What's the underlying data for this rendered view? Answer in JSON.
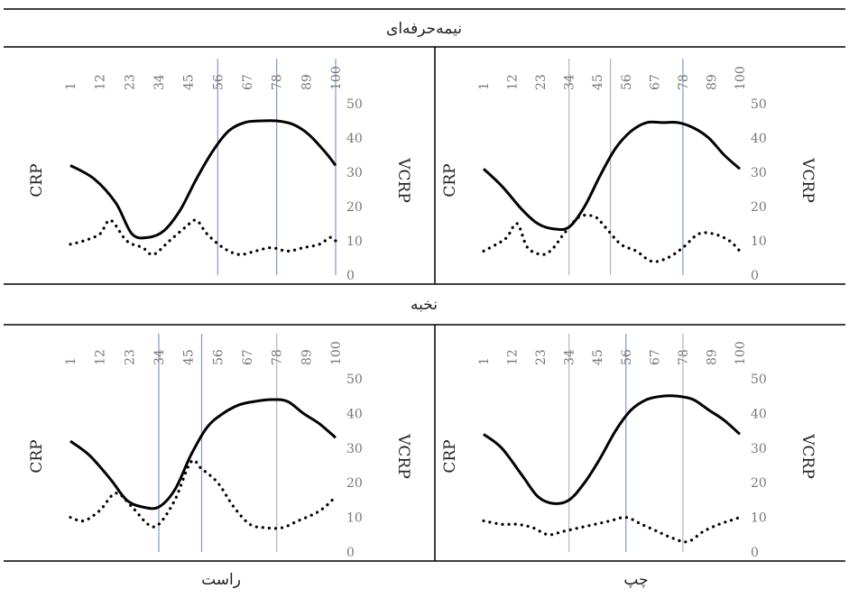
{
  "figure": {
    "section_titles": [
      "نیمه‌حرفه‌ای",
      "نخبه"
    ],
    "column_titles": [
      "راست",
      "چپ"
    ]
  },
  "colors": {
    "curve": "#000000",
    "vline_gray": "#b5b5b5",
    "vline_blue": "#7f9bc6",
    "frame": "#000000"
  },
  "chart_data": [
    {
      "type": "line",
      "group": "نیمه‌حرفه‌ای",
      "side": "راست",
      "x_ticks": [
        "1",
        "12",
        "23",
        "34",
        "45",
        "56",
        "67",
        "78",
        "89",
        "100"
      ],
      "xlim": [
        1,
        100
      ],
      "ylim": [
        0,
        50
      ],
      "y_ticks": [
        "0",
        "10",
        "20",
        "30",
        "40",
        "50"
      ],
      "y_left_label": "CRP",
      "y_right_label": "VCRP",
      "series": [
        {
          "style": "solid",
          "x": [
            1,
            10,
            18,
            24,
            30,
            36,
            42,
            48,
            54,
            60,
            66,
            72,
            78,
            84,
            90,
            96,
            100
          ],
          "y": [
            32,
            28,
            21,
            12,
            11,
            13,
            19,
            28,
            36,
            42,
            44.5,
            45,
            45,
            44,
            41,
            36,
            32
          ]
        },
        {
          "style": "dotted",
          "x": [
            1,
            6,
            12,
            16,
            22,
            28,
            32,
            38,
            44,
            48,
            52,
            58,
            64,
            70,
            76,
            82,
            88,
            94,
            98,
            100
          ],
          "y": [
            9,
            10,
            12,
            16,
            10,
            8,
            6,
            10,
            14,
            16,
            12,
            8,
            6,
            7,
            8,
            7,
            8,
            9,
            11,
            10
          ]
        }
      ],
      "vlines": [
        {
          "x": 56,
          "color": "blue"
        },
        {
          "x": 78,
          "color": "blue"
        },
        {
          "x": 100,
          "color": "blue"
        }
      ]
    },
    {
      "type": "line",
      "group": "نیمه‌حرفه‌ای",
      "side": "چپ",
      "x_ticks": [
        "1",
        "12",
        "23",
        "34",
        "45",
        "56",
        "67",
        "78",
        "89",
        "100"
      ],
      "xlim": [
        1,
        100
      ],
      "ylim": [
        0,
        50
      ],
      "y_ticks": [
        "0",
        "10",
        "20",
        "30",
        "40",
        "50"
      ],
      "y_left_label": "CRP",
      "y_right_label": "VCRP",
      "series": [
        {
          "style": "solid",
          "x": [
            1,
            8,
            16,
            22,
            28,
            34,
            40,
            46,
            52,
            58,
            64,
            70,
            76,
            82,
            88,
            94,
            100
          ],
          "y": [
            31,
            26,
            19,
            15,
            13.5,
            14,
            20,
            29,
            37,
            42,
            44.5,
            44.5,
            44.5,
            43,
            40,
            35,
            31
          ]
        },
        {
          "style": "dotted",
          "x": [
            1,
            6,
            10,
            14,
            18,
            24,
            28,
            32,
            38,
            44,
            48,
            54,
            60,
            66,
            72,
            78,
            84,
            90,
            96,
            100
          ],
          "y": [
            7,
            9,
            11,
            15,
            8,
            6,
            8,
            12,
            17,
            17,
            14,
            9,
            7,
            4,
            5,
            8,
            12,
            12,
            10,
            7
          ]
        }
      ],
      "vlines": [
        {
          "x": 34,
          "color": "gray"
        },
        {
          "x": 50,
          "color": "gray"
        },
        {
          "x": 78,
          "color": "blue"
        }
      ]
    },
    {
      "type": "line",
      "group": "نخبه",
      "side": "راست",
      "x_ticks": [
        "1",
        "12",
        "23",
        "34",
        "45",
        "56",
        "67",
        "78",
        "89",
        "100"
      ],
      "xlim": [
        1,
        100
      ],
      "ylim": [
        0,
        50
      ],
      "y_ticks": [
        "0",
        "10",
        "20",
        "30",
        "40",
        "50"
      ],
      "y_left_label": "CRP",
      "y_right_label": "VCRP",
      "series": [
        {
          "style": "solid",
          "x": [
            1,
            8,
            16,
            22,
            28,
            34,
            40,
            46,
            52,
            58,
            64,
            70,
            76,
            82,
            88,
            94,
            100
          ],
          "y": [
            32,
            28,
            21,
            15,
            13,
            13,
            18,
            28,
            36,
            40,
            42.5,
            43.5,
            44,
            43.5,
            40,
            37,
            33
          ]
        },
        {
          "style": "dotted",
          "x": [
            1,
            6,
            12,
            18,
            24,
            30,
            34,
            40,
            46,
            50,
            56,
            62,
            68,
            74,
            80,
            86,
            92,
            96,
            100
          ],
          "y": [
            10,
            9,
            12,
            17,
            13,
            8,
            8,
            15,
            26,
            24,
            20,
            13,
            8,
            7,
            7,
            9,
            11,
            13,
            16
          ]
        }
      ],
      "vlines": [
        {
          "x": 34,
          "color": "blue"
        },
        {
          "x": 50,
          "color": "blue"
        },
        {
          "x": 78,
          "color": "gray"
        }
      ]
    },
    {
      "type": "line",
      "group": "نخبه",
      "side": "چپ",
      "x_ticks": [
        "1",
        "12",
        "23",
        "34",
        "45",
        "56",
        "67",
        "78",
        "89",
        "100"
      ],
      "xlim": [
        1,
        100
      ],
      "ylim": [
        0,
        50
      ],
      "y_ticks": [
        "0",
        "10",
        "20",
        "30",
        "40",
        "50"
      ],
      "y_left_label": "CRP",
      "y_right_label": "VCRP",
      "series": [
        {
          "style": "solid",
          "x": [
            1,
            8,
            16,
            22,
            28,
            34,
            40,
            46,
            52,
            58,
            64,
            70,
            76,
            82,
            88,
            94,
            100
          ],
          "y": [
            34,
            30,
            22,
            16,
            14,
            15,
            20,
            27,
            35,
            41,
            44,
            45,
            45,
            44,
            41,
            38,
            34
          ]
        },
        {
          "style": "dotted",
          "x": [
            1,
            8,
            14,
            20,
            26,
            32,
            38,
            44,
            50,
            56,
            62,
            68,
            74,
            80,
            86,
            92,
            96,
            100
          ],
          "y": [
            9,
            8,
            8,
            7,
            5,
            6,
            7,
            8,
            9,
            10,
            8,
            6,
            4,
            3,
            6,
            8,
            9,
            10
          ]
        }
      ],
      "vlines": [
        {
          "x": 34,
          "color": "gray"
        },
        {
          "x": 56,
          "color": "blue"
        },
        {
          "x": 78,
          "color": "gray"
        }
      ]
    }
  ]
}
